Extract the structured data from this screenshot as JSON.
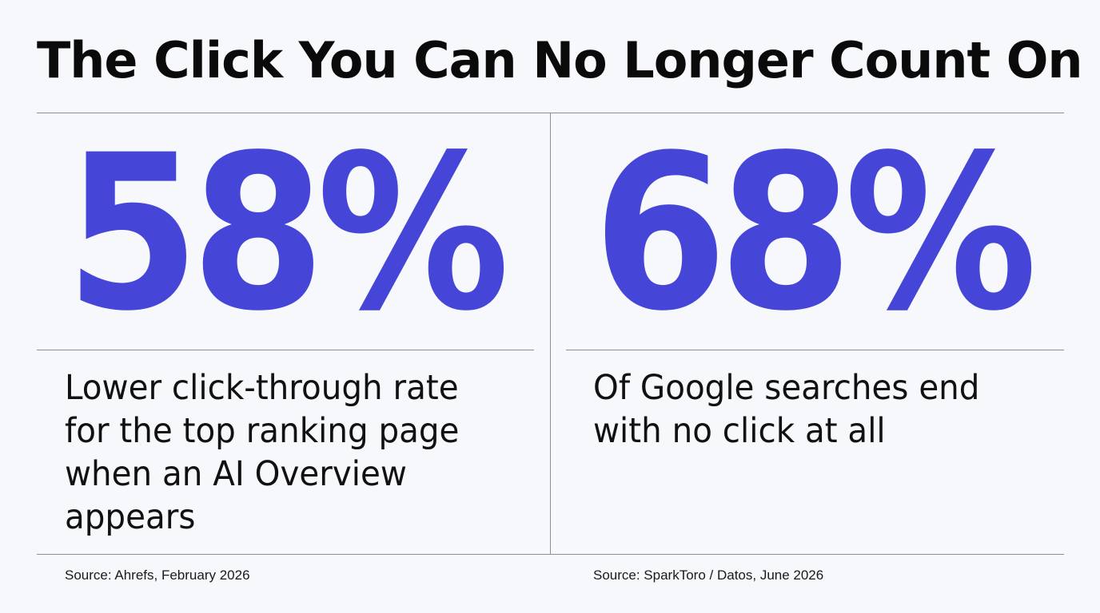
{
  "title": "The Click You Can No Longer Count On",
  "panels": [
    {
      "stat": "58%",
      "description": "Lower click-through rate\nfor the top ranking page\nwhen an AI Overview\nappears",
      "source": "Source: Ahrefs, February 2026"
    },
    {
      "stat": "68%",
      "description": "Of Google searches end\nwith no click at all",
      "source": "Source: SparkToro / Datos, June 2026"
    }
  ],
  "colors": {
    "accent": "#4545d8",
    "background": "#f6f8fc",
    "rule": "#8e8e93",
    "text": "#111111"
  }
}
